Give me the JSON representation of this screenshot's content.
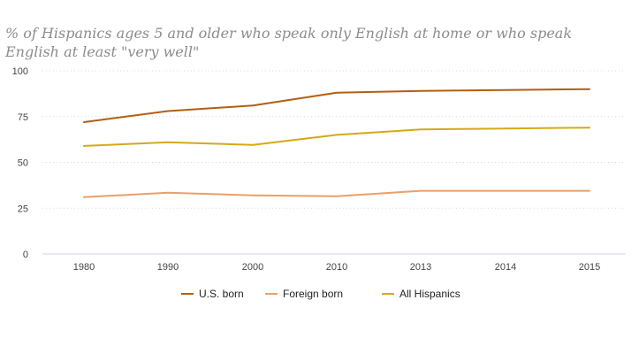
{
  "chart_data": {
    "type": "line",
    "title": "",
    "subtitle": "% of Hispanics ages 5 and older who speak only English at home or who speak English at least \"very well\"",
    "xlabel": "",
    "ylabel": "",
    "ylim": [
      0,
      100
    ],
    "yticks": [
      0,
      25,
      50,
      75,
      100
    ],
    "grid": true,
    "legend": "bottom-center",
    "categories": [
      "1980",
      "1990",
      "2000",
      "2010",
      "2013",
      "2014",
      "2015"
    ],
    "series": [
      {
        "name": "U.S. born",
        "color": "#b15f10",
        "values": [
          72,
          78,
          81,
          88,
          89,
          89.5,
          90
        ]
      },
      {
        "name": "Foreign born",
        "color": "#e8a068",
        "values": [
          31,
          33.5,
          32,
          31.5,
          34.5,
          34.5,
          34.5
        ]
      },
      {
        "name": "All Hispanics",
        "color": "#d4a918",
        "values": [
          59,
          61,
          59.5,
          65,
          68,
          68.5,
          69
        ]
      }
    ]
  }
}
